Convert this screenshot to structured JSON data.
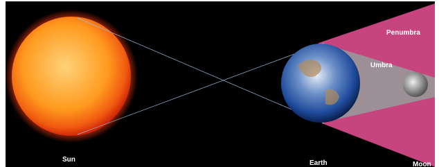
{
  "labels": {
    "sun": "Sun",
    "earth": "Earth",
    "umbra": "Umbra",
    "penumbra": "Penumbra",
    "moon": "Moon"
  }
}
